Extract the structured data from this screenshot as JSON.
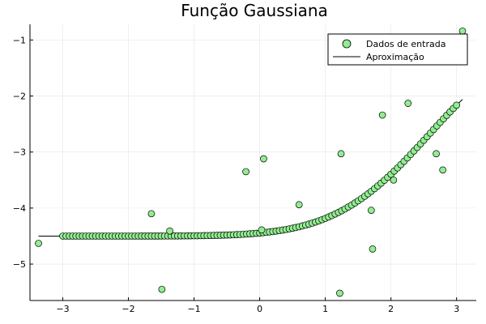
{
  "chart_data": {
    "type": "scatter",
    "title": "Função Gaussiana",
    "xlabel": "",
    "ylabel": "",
    "xlim": [
      -3.5,
      3.3
    ],
    "ylim": [
      -5.65,
      -0.72
    ],
    "xticks": [
      -3,
      -2,
      -1,
      0,
      1,
      2,
      3
    ],
    "yticks": [
      -5,
      -4,
      -3,
      -2,
      -1
    ],
    "xtick_labels": [
      "−3",
      "−2",
      "−1",
      "0",
      "1",
      "2",
      "3"
    ],
    "ytick_labels": [
      "−5",
      "−4",
      "−3",
      "−2",
      "−1"
    ],
    "grid": true,
    "legend_position": "top-right",
    "legend": {
      "scatter_label": "Dados de entrada",
      "line_label": "Aproximação"
    },
    "colors": {
      "marker_fill": "#90ee90",
      "marker_stroke": "#000000",
      "line": "#000000"
    },
    "series": [
      {
        "name": "Dados de entrada",
        "type": "scatter",
        "points": [
          {
            "x": -3.37,
            "y": -4.63
          },
          {
            "x": -1.65,
            "y": -4.1
          },
          {
            "x": -1.49,
            "y": -5.45
          },
          {
            "x": -1.37,
            "y": -4.41
          },
          {
            "x": -0.21,
            "y": -3.35
          },
          {
            "x": 0.03,
            "y": -4.39
          },
          {
            "x": 0.06,
            "y": -3.12
          },
          {
            "x": 0.6,
            "y": -3.94
          },
          {
            "x": 1.22,
            "y": -5.52
          },
          {
            "x": 1.24,
            "y": -3.03
          },
          {
            "x": 1.7,
            "y": -4.04
          },
          {
            "x": 1.72,
            "y": -4.73
          },
          {
            "x": 1.87,
            "y": -2.34
          },
          {
            "x": 2.04,
            "y": -3.5
          },
          {
            "x": 2.26,
            "y": -2.13
          },
          {
            "x": 2.69,
            "y": -3.03
          },
          {
            "x": 2.79,
            "y": -3.32
          },
          {
            "x": 3.09,
            "y": -0.84
          }
        ],
        "fitted_markers": {
          "x_start": -3.0,
          "x_end": 3.0,
          "count": 121
        }
      },
      {
        "name": "Aproximação",
        "type": "line",
        "x_range": [
          -3.37,
          3.09
        ],
        "model": {
          "a": -4.5,
          "b": 3.0,
          "c": 4.0,
          "d": 4.0
        }
      }
    ]
  }
}
